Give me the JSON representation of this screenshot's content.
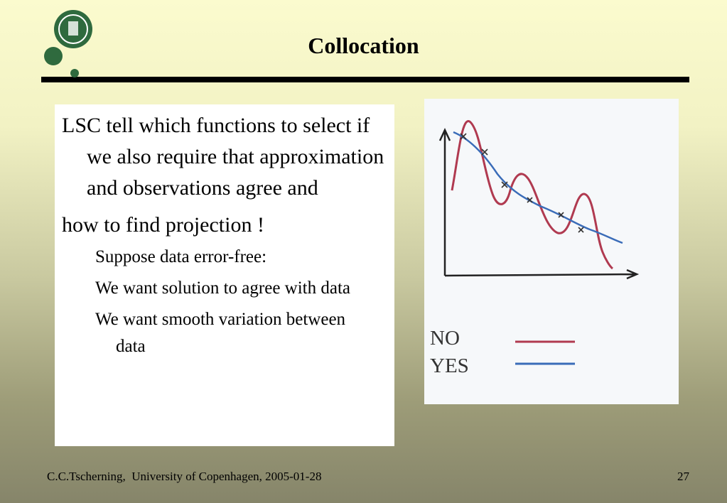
{
  "header": {
    "title": "Collocation"
  },
  "body": {
    "paragraphs": [
      "LSC tell which functions to select if we also require that approximation and observations agree and",
      "how to find projection !"
    ],
    "subpoints": [
      "Suppose data error-free:",
      "We want solution to agree with data",
      "We want smooth variation between data"
    ]
  },
  "figure": {
    "legend": [
      "NO",
      "YES"
    ]
  },
  "footer": {
    "author": "C.C.Tscherning,  University of Copenhagen, 2005-01-28",
    "page": "27"
  }
}
